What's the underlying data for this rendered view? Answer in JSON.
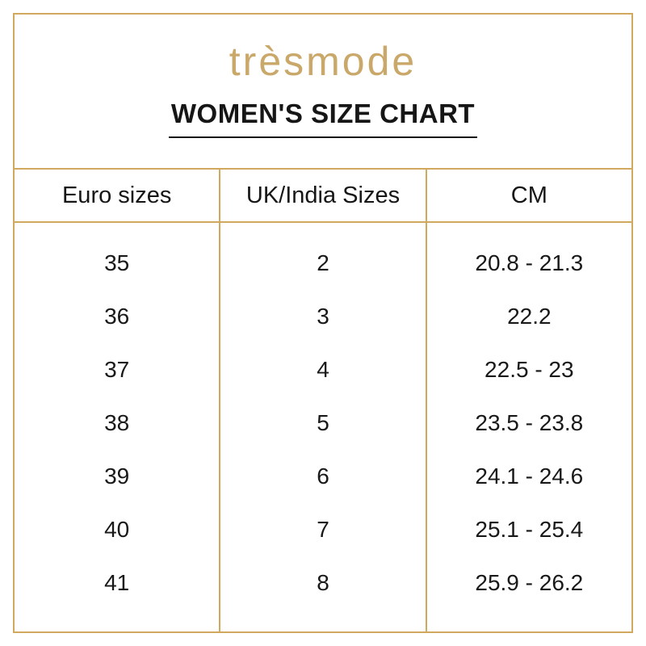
{
  "header": {
    "brand": "trèsmode",
    "title": "WOMEN'S SIZE CHART"
  },
  "colors": {
    "gold_border": "#d0a95e",
    "logo_gold": "#c9a86a",
    "text": "#1b1b1b"
  },
  "chart_data": {
    "type": "table",
    "title": "WOMEN'S SIZE CHART",
    "brand": "trèsmode",
    "columns": [
      "Euro sizes",
      "UK/India Sizes",
      "CM"
    ],
    "rows": [
      [
        "35",
        "2",
        "20.8 - 21.3"
      ],
      [
        "36",
        "3",
        "22.2"
      ],
      [
        "37",
        "4",
        "22.5 - 23"
      ],
      [
        "38",
        "5",
        "23.5 - 23.8"
      ],
      [
        "39",
        "6",
        "24.1 - 24.6"
      ],
      [
        "40",
        "7",
        "25.1 - 25.4"
      ],
      [
        "41",
        "8",
        "25.9 - 26.2"
      ]
    ],
    "layout": {
      "grid_lines": "header and column dividers only",
      "border_color": "#d0a95e",
      "columns_equal_width": true
    }
  }
}
